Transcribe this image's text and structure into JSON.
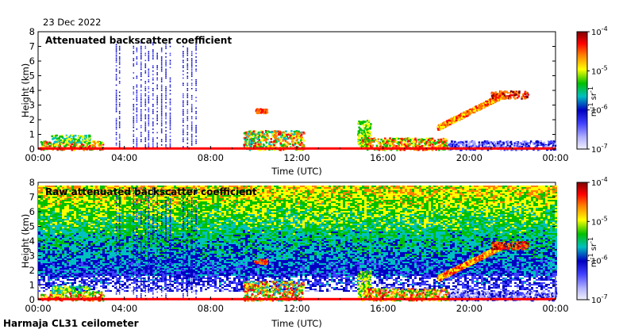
{
  "date_label": "23 Dec 2022",
  "footer_label": "Harmaja CL31 ceilometer",
  "colorbar": {
    "ticks": [
      {
        "base": "10",
        "exp": "-4",
        "value": -4
      },
      {
        "base": "10",
        "exp": "-5",
        "value": -5
      },
      {
        "base": "10",
        "exp": "-6",
        "value": -6
      },
      {
        "base": "10",
        "exp": "-7",
        "value": -7
      }
    ],
    "unit_parts": [
      "m",
      "-1",
      " sr",
      "-1"
    ],
    "colors": [
      "#f0f0ff",
      "#b0b0ff",
      "#4040ff",
      "#0000c0",
      "#00c0c0",
      "#00c000",
      "#ffff00",
      "#ff8000",
      "#ff0000",
      "#800000"
    ]
  },
  "chart_data": [
    {
      "type": "heatmap",
      "title": "Attenuated backscatter coefficient",
      "xlabel": "Time (UTC)",
      "ylabel": "Height (km)",
      "xlim": [
        0,
        24
      ],
      "ylim": [
        0,
        8
      ],
      "x_ticks": [
        "00:00",
        "04:00",
        "08:00",
        "12:00",
        "16:00",
        "20:00",
        "00:00"
      ],
      "y_ticks": [
        "0",
        "1",
        "2",
        "3",
        "4",
        "5",
        "6",
        "7",
        "8"
      ],
      "color_scale": "log",
      "clim": [
        -7,
        -4
      ]
    },
    {
      "type": "heatmap",
      "title": "Raw attenuated backscatter coefficient",
      "xlabel": "Time (UTC)",
      "ylabel": "Height (km)",
      "xlim": [
        0,
        24
      ],
      "ylim": [
        0,
        8
      ],
      "x_ticks": [
        "00:00",
        "04:00",
        "08:00",
        "12:00",
        "16:00",
        "20:00",
        "00:00"
      ],
      "y_ticks": [
        "0",
        "1",
        "2",
        "3",
        "4",
        "5",
        "6",
        "7",
        "8"
      ],
      "color_scale": "log",
      "clim": [
        -7,
        -4
      ]
    }
  ]
}
